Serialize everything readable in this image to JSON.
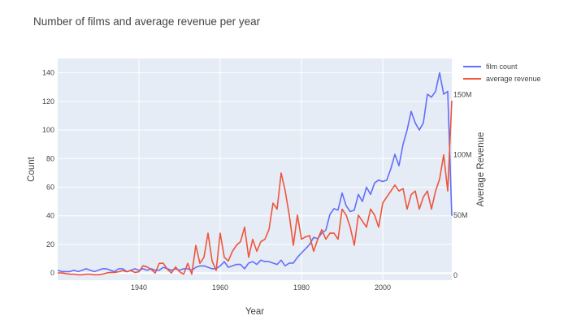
{
  "chart_data": {
    "type": "line",
    "title": "Number of films and average revenue per year",
    "xlabel": "Year",
    "ylabel": "Count",
    "y2label": "Average Revenue",
    "xlim": [
      1920,
      2017
    ],
    "ylim": [
      -5,
      150
    ],
    "y2lim": [
      -4,
      180
    ],
    "x_ticks": [
      1940,
      1960,
      1980,
      2000
    ],
    "y_ticks": [
      0,
      20,
      40,
      60,
      80,
      100,
      120,
      140
    ],
    "y2_ticks": [
      0,
      50,
      100,
      150
    ],
    "y2_tick_labels": [
      "0",
      "50M",
      "100M",
      "150M"
    ],
    "grid": true,
    "legend_position": "top-right",
    "years": [
      1920,
      1921,
      1922,
      1923,
      1924,
      1925,
      1926,
      1927,
      1928,
      1929,
      1930,
      1931,
      1932,
      1933,
      1934,
      1935,
      1936,
      1937,
      1938,
      1939,
      1940,
      1941,
      1942,
      1943,
      1944,
      1945,
      1946,
      1947,
      1948,
      1949,
      1950,
      1951,
      1952,
      1953,
      1954,
      1955,
      1956,
      1957,
      1958,
      1959,
      1960,
      1961,
      1962,
      1963,
      1964,
      1965,
      1966,
      1967,
      1968,
      1969,
      1970,
      1971,
      1972,
      1973,
      1974,
      1975,
      1976,
      1977,
      1978,
      1979,
      1980,
      1981,
      1982,
      1983,
      1984,
      1985,
      1986,
      1987,
      1988,
      1989,
      1990,
      1991,
      1992,
      1993,
      1994,
      1995,
      1996,
      1997,
      1998,
      1999,
      2000,
      2001,
      2002,
      2003,
      2004,
      2005,
      2006,
      2007,
      2008,
      2009,
      2010,
      2011,
      2012,
      2013,
      2014,
      2015,
      2016,
      2017
    ],
    "series": [
      {
        "name": "film count",
        "color": "#636efa",
        "axis": "y",
        "values": [
          2,
          1,
          1,
          1,
          2,
          1,
          2,
          3,
          2,
          1,
          2,
          3,
          3,
          2,
          1,
          3,
          3,
          1,
          2,
          3,
          2,
          3,
          2,
          3,
          2,
          2,
          4,
          3,
          2,
          3,
          2,
          3,
          3,
          2,
          4,
          5,
          5,
          4,
          3,
          3,
          5,
          8,
          4,
          5,
          6,
          6,
          3,
          7,
          8,
          6,
          9,
          8,
          8,
          7,
          6,
          9,
          5,
          7,
          7,
          11,
          14,
          17,
          20,
          25,
          24,
          28,
          30,
          41,
          45,
          44,
          56,
          47,
          43,
          44,
          55,
          50,
          60,
          55,
          63,
          65,
          64,
          65,
          73,
          83,
          75,
          90,
          100,
          113,
          105,
          100,
          105,
          125,
          123,
          127,
          140,
          125,
          127,
          40
        ]
      },
      {
        "name": "average revenue",
        "color": "#ef553b",
        "axis": "y2",
        "values": [
          2,
          2,
          1.5,
          1,
          1,
          0.5,
          0.5,
          1,
          1,
          0.5,
          0.5,
          1,
          2,
          2.5,
          2.5,
          3,
          4,
          3,
          4,
          2.5,
          3,
          8,
          7,
          5,
          2,
          10,
          10,
          5,
          2,
          7,
          3,
          1,
          10,
          1,
          25,
          10,
          15,
          35,
          12,
          4,
          35,
          15,
          12,
          20,
          25,
          28,
          40,
          15,
          30,
          20,
          28,
          30,
          38,
          60,
          55,
          85,
          70,
          50,
          25,
          50,
          30,
          32,
          33,
          20,
          30,
          38,
          30,
          35,
          35,
          30,
          55,
          50,
          40,
          25,
          50,
          45,
          40,
          55,
          50,
          40,
          60,
          65,
          70,
          75,
          70,
          72,
          55,
          67,
          70,
          55,
          65,
          70,
          55,
          70,
          80,
          100,
          70,
          145
        ]
      }
    ]
  }
}
